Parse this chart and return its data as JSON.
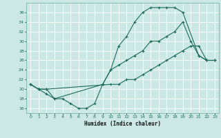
{
  "line1_x": [
    0,
    1,
    2,
    3,
    9,
    10,
    11,
    12,
    13,
    14,
    15,
    16,
    17,
    18,
    19,
    21,
    22,
    23
  ],
  "line1_y": [
    21,
    20,
    19,
    18,
    21,
    24,
    29,
    31,
    34,
    36,
    37,
    37,
    37,
    37,
    36,
    27,
    26,
    26
  ],
  "line2_x": [
    0,
    1,
    2,
    3,
    4,
    5,
    6,
    7,
    8,
    9,
    10,
    11,
    12,
    13,
    14,
    15,
    16,
    17,
    18,
    19,
    20,
    21,
    22,
    23
  ],
  "line2_y": [
    21,
    20,
    20,
    18,
    18,
    17,
    16,
    16,
    17,
    21,
    24,
    25,
    26,
    27,
    28,
    30,
    30,
    31,
    32,
    34,
    30,
    27,
    26,
    26
  ],
  "line3_x": [
    0,
    1,
    2,
    10,
    11,
    12,
    13,
    14,
    15,
    16,
    17,
    18,
    19,
    20,
    21,
    22,
    23
  ],
  "line3_y": [
    21,
    20,
    20,
    21,
    21,
    22,
    22,
    23,
    24,
    25,
    26,
    27,
    28,
    29,
    29,
    26,
    26
  ],
  "color": "#1a6b5a",
  "bg_color": "#cce8e4",
  "grid_color": "#b0d8d4",
  "xlabel": "Humidex (Indice chaleur)",
  "ylim": [
    15,
    38
  ],
  "xlim": [
    -0.5,
    23.5
  ],
  "yticks": [
    16,
    18,
    20,
    22,
    24,
    26,
    28,
    30,
    32,
    34,
    36
  ],
  "xticks": [
    0,
    1,
    2,
    3,
    4,
    5,
    6,
    7,
    8,
    9,
    10,
    11,
    12,
    13,
    14,
    15,
    16,
    17,
    18,
    19,
    20,
    21,
    22,
    23
  ],
  "marker": "+",
  "linewidth": 0.8,
  "markersize": 3,
  "markeredgewidth": 0.8
}
